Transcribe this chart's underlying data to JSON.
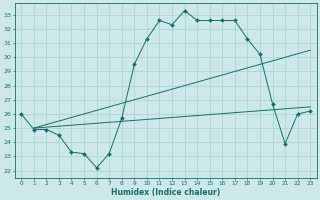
{
  "bg_color": "#cce8e8",
  "grid_color": "#99cccc",
  "line_color": "#1a6b6b",
  "marker": "D",
  "marker_size": 2.0,
  "xlim": [
    -0.5,
    23.5
  ],
  "ylim": [
    21.5,
    33.8
  ],
  "yticks": [
    22,
    23,
    24,
    25,
    26,
    27,
    28,
    29,
    30,
    31,
    32,
    33
  ],
  "xticks": [
    0,
    1,
    2,
    3,
    4,
    5,
    6,
    7,
    8,
    9,
    10,
    11,
    12,
    13,
    14,
    15,
    16,
    17,
    18,
    19,
    20,
    21,
    22,
    23
  ],
  "xlabel": "Humidex (Indice chaleur)",
  "line1_x": [
    0,
    1,
    2,
    3,
    4,
    5,
    6,
    7,
    8,
    9,
    10,
    11,
    12,
    13,
    14,
    15,
    16,
    17,
    18,
    19,
    20,
    21,
    22,
    23
  ],
  "line1_y": [
    26.0,
    24.9,
    24.9,
    24.5,
    23.3,
    23.2,
    22.2,
    23.2,
    25.7,
    29.5,
    31.3,
    32.6,
    32.3,
    33.3,
    32.6,
    32.6,
    32.6,
    32.6,
    31.3,
    30.2,
    26.7,
    23.9,
    26.0,
    26.2
  ],
  "line2_x": [
    1,
    23
  ],
  "line2_y": [
    25.0,
    30.5
  ],
  "line3_x": [
    1,
    23
  ],
  "line3_y": [
    25.0,
    26.5
  ]
}
